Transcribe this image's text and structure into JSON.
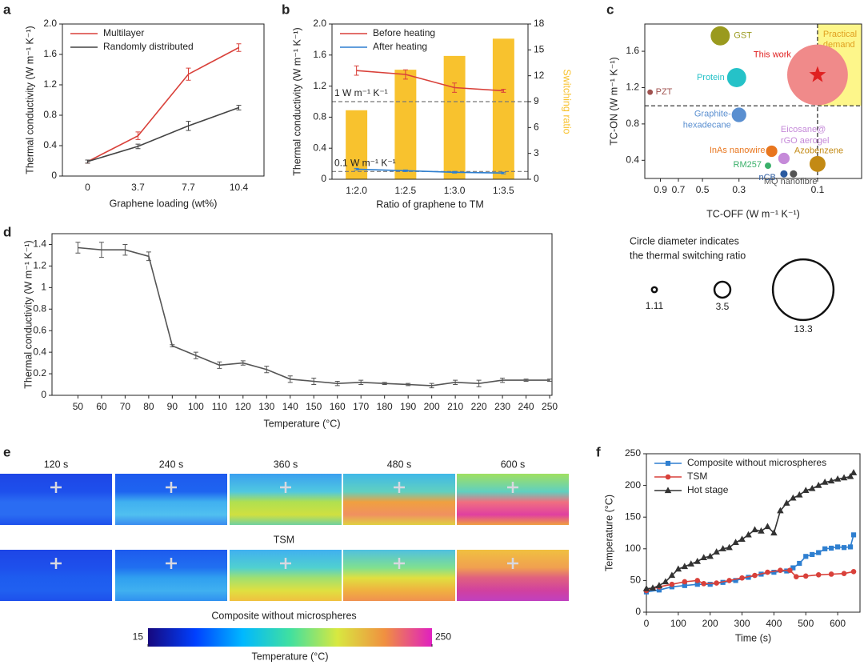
{
  "chart_data": [
    {
      "panel": "a",
      "type": "line",
      "categories": [
        "0",
        "3.7",
        "7.7",
        "10.4"
      ],
      "xlabel": "Graphene loading (wt%)",
      "ylabel": "Thermal conductivity (W m⁻¹ K⁻¹)",
      "ylim": [
        0,
        2.0
      ],
      "yticks": [
        0,
        0.4,
        0.8,
        1.2,
        1.6,
        {
          "value": 2,
          "label": "2.0"
        }
      ],
      "legend": "upper left",
      "series": [
        {
          "name": "Multilayer",
          "color": "#d9413a",
          "values": [
            0.19,
            0.53,
            1.34,
            1.69
          ],
          "errors": [
            0.02,
            0.05,
            0.08,
            0.05
          ]
        },
        {
          "name": "Randomly distributed",
          "color": "#444444",
          "values": [
            0.19,
            0.39,
            0.66,
            0.9
          ],
          "errors": [
            0.02,
            0.03,
            0.06,
            0.03
          ]
        }
      ]
    },
    {
      "panel": "b",
      "type": "combo",
      "categories": [
        "1:2.0",
        "1:2.5",
        "1:3.0",
        "1:3.5"
      ],
      "xlabel": "Ratio of graphene to TM",
      "ylabel": "Thermal conductivity (W m⁻¹ K⁻¹)",
      "y2label": "Switching ratio",
      "ylim": [
        0,
        2.0
      ],
      "yticks": [
        0,
        0.4,
        0.8,
        1.2,
        1.6,
        {
          "value": 2,
          "label": "2.0"
        }
      ],
      "y2lim": [
        0,
        18
      ],
      "y2ticks": [
        0,
        3,
        6,
        9,
        12,
        15,
        18
      ],
      "legend": "upper left",
      "reference_lines": [
        {
          "value": 1,
          "label": "1 W m⁻¹ K⁻¹"
        },
        {
          "value": 0.1,
          "label": "0.1 W m⁻¹ K⁻¹"
        }
      ],
      "series": [
        {
          "type": "bar",
          "axis": "y2",
          "color": "#f8c22e",
          "values": [
            8.0,
            12.7,
            14.3,
            16.3
          ]
        },
        {
          "name": "Before heating",
          "color": "#d9413a",
          "values": [
            1.4,
            1.35,
            1.18,
            1.14
          ],
          "errors": [
            0.06,
            0.06,
            0.06,
            0.02
          ]
        },
        {
          "name": "After heating",
          "color": "#2e7fd0",
          "values": [
            0.13,
            0.11,
            0.09,
            0.08
          ],
          "errors": [
            0.01,
            0.01,
            0.01,
            0.01
          ]
        }
      ]
    },
    {
      "panel": "c",
      "type": "bubble",
      "xlabel": "TC-OFF (W m⁻¹ K⁻¹)",
      "ylabel": "TC-ON (W m⁻¹ K⁻¹)",
      "xscale": "log",
      "xlim": [
        1.12,
        0.054
      ],
      "xticks": [
        0.9,
        0.7,
        0.5,
        0.3,
        0.1
      ],
      "ylim": [
        0.2,
        1.9
      ],
      "yticks": [
        0.4,
        0.8,
        1.2,
        1.6
      ],
      "region": {
        "label": [
          "Practical",
          "demand"
        ],
        "x": 0.1,
        "y": 1.0,
        "color": "#fdf68a",
        "label_color": "#e0a020"
      },
      "points": [
        {
          "label": "PZT",
          "x": 1.04,
          "y": 1.15,
          "size": 1.2,
          "color": "#a0524f"
        },
        {
          "label": "GST",
          "x": 0.39,
          "y": 1.77,
          "size": 4.2,
          "color": "#9a9a1e"
        },
        {
          "label": "Protein",
          "x": 0.31,
          "y": 1.31,
          "size": 4.2,
          "color": "#25c2c8"
        },
        {
          "label": "This work",
          "x": 0.1,
          "y": 1.34,
          "size": 13.3,
          "color": "#f08a8a",
          "marker": "star",
          "marker_color": "#e02020"
        },
        {
          "label": [
            "Graphite-",
            "hexadecane"
          ],
          "x": 0.3,
          "y": 0.9,
          "size": 3.2,
          "color": "#5a8fd0"
        },
        {
          "label": "InAs nanowire",
          "x": 0.19,
          "y": 0.5,
          "size": 2.5,
          "color": "#e8761e"
        },
        {
          "label": [
            "Eicosane@",
            "rGO aerogel"
          ],
          "x": 0.16,
          "y": 0.42,
          "size": 2.5,
          "color": "#c58ad9"
        },
        {
          "label": "Azobenzene",
          "x": 0.1,
          "y": 0.36,
          "size": 3.5,
          "color": "#c38a14"
        },
        {
          "label": "RM257",
          "x": 0.2,
          "y": 0.34,
          "size": 1.4,
          "color": "#3ab06a"
        },
        {
          "label": "nCB",
          "x": 0.16,
          "y": 0.25,
          "size": 1.6,
          "color": "#2a5aa0"
        },
        {
          "label": "MQ nanofibre",
          "x": 0.14,
          "y": 0.25,
          "size": 1.6,
          "color": "#555555"
        }
      ],
      "size_legend": {
        "title": [
          "Circle diameter indicates",
          "the thermal switching ratio"
        ],
        "values": [
          1.11,
          3.5,
          13.3
        ]
      }
    },
    {
      "panel": "d",
      "type": "line",
      "xlabel": "Temperature (°C)",
      "ylabel": "Thermal conductivity (W m⁻¹ K⁻¹)",
      "x": [
        50,
        60,
        70,
        80,
        90,
        100,
        110,
        120,
        130,
        140,
        150,
        160,
        170,
        180,
        190,
        200,
        210,
        220,
        230,
        240,
        250
      ],
      "xlim": [
        39,
        251
      ],
      "xticks": [
        50,
        60,
        70,
        80,
        90,
        100,
        110,
        120,
        130,
        140,
        150,
        160,
        170,
        180,
        190,
        200,
        210,
        220,
        230,
        240,
        250
      ],
      "ylim": [
        0,
        1.5
      ],
      "yticks": [
        0,
        0.2,
        0.4,
        0.6,
        0.8,
        1.0,
        1.2,
        1.4
      ],
      "series": [
        {
          "color": "#555555",
          "values": [
            1.37,
            1.35,
            1.35,
            1.29,
            0.46,
            0.37,
            0.28,
            0.3,
            0.24,
            0.15,
            0.13,
            0.11,
            0.12,
            0.11,
            0.1,
            0.09,
            0.12,
            0.11,
            0.14,
            0.14,
            0.14
          ],
          "errors": [
            0.05,
            0.07,
            0.05,
            0.04,
            0.01,
            0.03,
            0.03,
            0.02,
            0.03,
            0.03,
            0.03,
            0.02,
            0.02,
            0.01,
            0.01,
            0.02,
            0.02,
            0.03,
            0.02,
            0.01,
            0.01
          ]
        }
      ]
    },
    {
      "panel": "e",
      "type": "image-grid",
      "times": [
        "120 s",
        "240 s",
        "360 s",
        "480 s",
        "600 s"
      ],
      "rows": [
        "TSM",
        "Composite without microspheres"
      ],
      "colorbar": {
        "lim": [
          15,
          250
        ],
        "ticks": [
          15,
          250
        ],
        "label": "Temperature (°C)"
      }
    },
    {
      "panel": "f",
      "type": "line",
      "xlabel": "Time (s)",
      "ylabel": "Temperature (°C)",
      "xlim": [
        0,
        670
      ],
      "xticks": [
        0,
        100,
        200,
        300,
        400,
        500,
        600
      ],
      "ylim": [
        0,
        250
      ],
      "yticks": [
        0,
        50,
        100,
        150,
        200,
        250
      ],
      "legend": "upper left",
      "series": [
        {
          "name": "Composite without microspheres",
          "color": "#2e7fd0",
          "marker": "square",
          "x": [
            0,
            40,
            80,
            120,
            160,
            200,
            240,
            280,
            320,
            360,
            400,
            440,
            460,
            480,
            500,
            520,
            540,
            560,
            580,
            600,
            620,
            640,
            650
          ],
          "values": [
            32,
            35,
            40,
            42,
            44,
            44,
            47,
            50,
            55,
            60,
            63,
            65,
            70,
            77,
            88,
            91,
            94,
            100,
            101,
            103,
            102,
            103,
            122
          ]
        },
        {
          "name": "TSM",
          "color": "#d9413a",
          "marker": "circle",
          "x": [
            0,
            40,
            80,
            120,
            160,
            180,
            220,
            260,
            300,
            340,
            380,
            420,
            450,
            470,
            500,
            540,
            580,
            620,
            650
          ],
          "values": [
            34,
            40,
            44,
            48,
            50,
            45,
            46,
            50,
            54,
            58,
            63,
            66,
            66,
            56,
            57,
            59,
            60,
            61,
            64
          ]
        },
        {
          "name": "Hot stage",
          "color": "#333333",
          "marker": "triangle",
          "x": [
            0,
            20,
            40,
            60,
            80,
            100,
            120,
            140,
            160,
            180,
            200,
            220,
            240,
            260,
            280,
            300,
            320,
            340,
            360,
            380,
            400,
            420,
            440,
            460,
            480,
            500,
            520,
            540,
            560,
            580,
            600,
            620,
            640,
            650
          ],
          "values": [
            37,
            38,
            42,
            48,
            58,
            68,
            72,
            76,
            80,
            86,
            88,
            95,
            100,
            102,
            110,
            115,
            122,
            130,
            128,
            135,
            125,
            160,
            172,
            180,
            185,
            192,
            195,
            200,
            205,
            207,
            210,
            212,
            214,
            220
          ]
        }
      ]
    }
  ]
}
